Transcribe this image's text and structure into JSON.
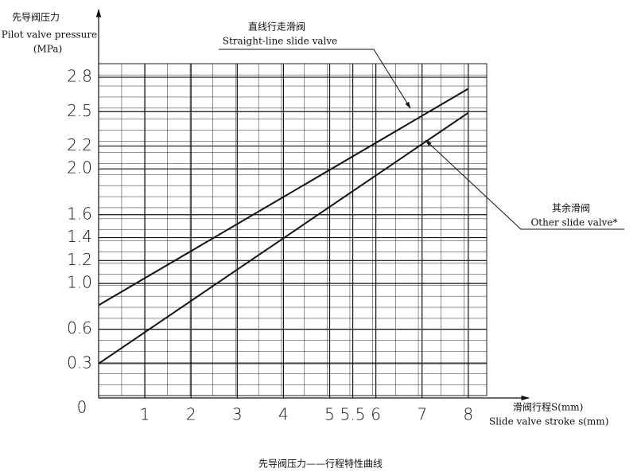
{
  "chart_data": {
    "type": "line",
    "caption": "先导阀压力——行程特性曲线",
    "y_label": [
      "先导阀压力",
      "Pilot valve pressure",
      "(MPa)"
    ],
    "x_label": [
      "滑阀行程S(mm)",
      "Slide valve stroke s(mm)"
    ],
    "x": [
      0,
      8
    ],
    "series": [
      {
        "name": "Straight-line slide valve",
        "name_cn": "直线行走滑阀",
        "color": "#111111",
        "values": [
          0.81,
          2.7
        ]
      },
      {
        "name": "Other slide valve*",
        "name_cn": "其余滑阀",
        "color": "#111111",
        "values": [
          0.3,
          2.49
        ]
      }
    ],
    "xlim": [
      0,
      8.4
    ],
    "ylim": [
      0,
      2.92
    ],
    "xticks": [
      1,
      2,
      3,
      4,
      5,
      5.5,
      6,
      7,
      8
    ],
    "yticks": [
      0,
      0.3,
      0.6,
      {
        "value": 1.0,
        "label": "1.0"
      },
      1.2,
      1.4,
      1.6,
      {
        "value": 2.0,
        "label": "2.0"
      },
      2.2,
      2.5,
      2.8
    ],
    "grid": true
  }
}
